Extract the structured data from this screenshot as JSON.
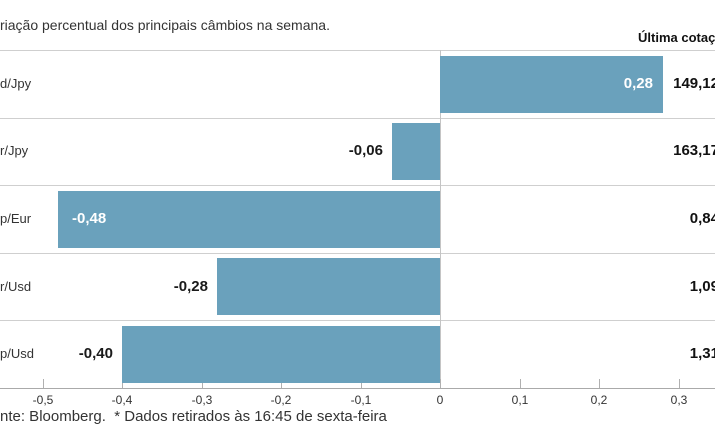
{
  "title": "riação percentual dos principais câmbios na semana.",
  "header": {
    "last_quote_label": "Última cotação"
  },
  "footer": "nte: Bloomberg.  * Dados retirados às 16:45 de sexta-feira",
  "colors": {
    "bar": "#6AA1BC",
    "separator": "#cfcfcf",
    "axis": "#aaaaaa",
    "text": "#333333",
    "bar_label_inside": "#ffffff",
    "bar_label_outside": "#1a1a1a"
  },
  "chart_data": {
    "type": "bar",
    "orientation": "horizontal",
    "title": "riação percentual dos principais câmbios na semana.",
    "categories": [
      "d/Jpy",
      "r/Jpy",
      "p/Eur",
      "r/Usd",
      "p/Usd"
    ],
    "values": [
      0.28,
      -0.06,
      -0.48,
      -0.28,
      -0.4
    ],
    "value_labels": [
      "0,28",
      "-0,06",
      "-0,48",
      "-0,28",
      "-0,40"
    ],
    "last_quotes": [
      "149,12",
      "163,17",
      "0,84",
      "1,09",
      "1,31"
    ],
    "last_quotes_header": "Última cotação",
    "x_tick_labels": [
      "-0,5",
      "-0,4",
      "-0,3",
      "-0,2",
      "-0,1",
      "0",
      "0,1",
      "0,2",
      "0,3"
    ],
    "x_tick_values": [
      -0.5,
      -0.4,
      -0.3,
      -0.2,
      -0.1,
      0,
      0.1,
      0.2,
      0.3
    ],
    "xlim": [
      -0.55,
      0.35
    ],
    "grid": "zero-line-only",
    "legend": "none",
    "source_note": "nte: Bloomberg.  * Dados retirados às 16:45 de sexta-feira"
  }
}
